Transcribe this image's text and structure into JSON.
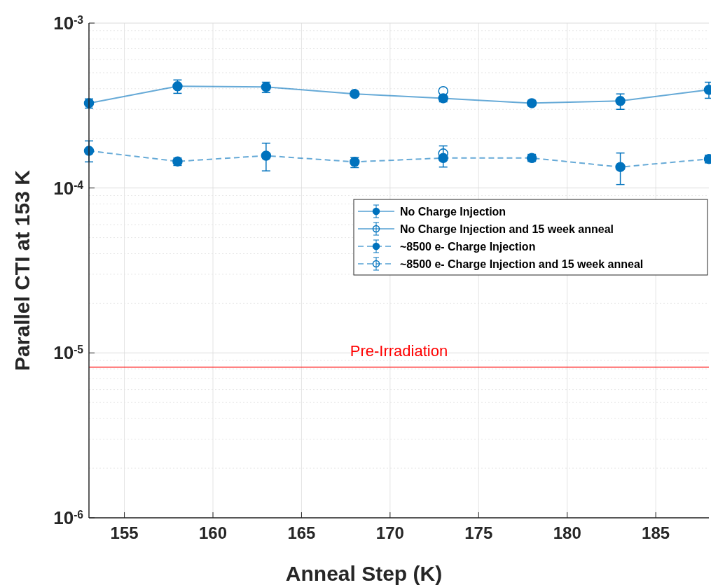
{
  "chart_data": {
    "type": "line",
    "xlabel": "Anneal Step (K)",
    "ylabel": "Parallel CTI at 153 K",
    "log": "y",
    "grid": true,
    "legend": "right",
    "marker": "circle",
    "x": [
      153,
      158,
      163,
      168,
      173,
      178,
      183,
      188
    ],
    "xlim": [
      153,
      188
    ],
    "xticks": [
      155,
      160,
      165,
      170,
      175,
      180,
      185
    ],
    "ylim": [
      1e-06,
      0.001
    ],
    "yticks": [
      {
        "value": 0.001,
        "label": "10$^{-3}$"
      },
      {
        "value": 0.0001,
        "label": "10$^{-4}$"
      },
      {
        "value": 1e-05,
        "label": "10$^{-5}$"
      },
      {
        "value": 1e-06,
        "label": "10$^{-6}$"
      }
    ],
    "series": [
      {
        "name": "No Charge Injection",
        "color": "#0072bd",
        "line_style": "solid",
        "values": [
          0.000327,
          0.000414,
          0.00041,
          0.000372,
          0.00035,
          0.000327,
          0.000337,
          0.000394
        ],
        "errors": [
          [
            0.000305,
            0.000347
          ],
          [
            0.000375,
            0.000452
          ],
          [
            0.000379,
            0.000438
          ],
          [
            0.000365,
            0.00038
          ],
          [
            0.000333,
            0.00036
          ],
          [
            0.000315,
            0.00034
          ],
          [
            0.0003,
            0.000372
          ],
          [
            0.00035,
            0.000438
          ]
        ]
      },
      {
        "name": "No Charge Injection and 15 week anneal",
        "color": "#0072bd",
        "type": "scatter",
        "line_style": "solid",
        "marker": "circle",
        "x": [
          173
        ],
        "values": [
          0.000387
        ]
      },
      {
        "name": "~8500 e- Charge Injection",
        "color": "#0072bd",
        "line_style": "dashed",
        "values": [
          0.000168,
          0.000145,
          0.000157,
          0.000144,
          0.000152,
          0.000152,
          0.000134,
          0.00015
        ],
        "errors": [
          [
            0.000144,
            0.000193
          ],
          [
            0.000137,
            0.000152
          ],
          [
            0.000127,
            0.000187
          ],
          [
            0.000133,
            0.000153
          ],
          [
            0.000134,
            0.00018
          ],
          [
            0.000145,
            0.00016
          ],
          [
            0.000105,
            0.000163
          ],
          [
            0.000142,
            0.000158
          ]
        ]
      },
      {
        "name": "~8500 e- Charge Injection and 15 week anneal",
        "color": "#0072bd",
        "type": "scatter",
        "line_style": "dashed",
        "marker": "circle",
        "x": [
          173
        ],
        "values": [
          0.000162
        ]
      }
    ],
    "ref_lines": [
      {
        "axis": "y",
        "value": 8.2e-06,
        "label": "Pre-Irradiation",
        "color": "#ff0000"
      }
    ]
  }
}
